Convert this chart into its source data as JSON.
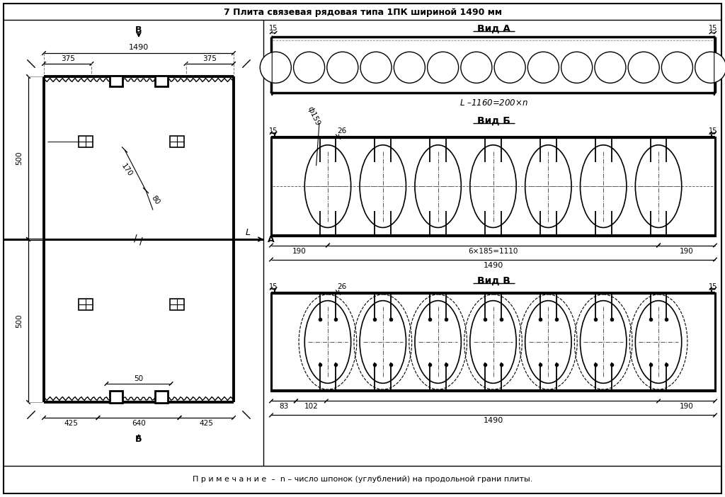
{
  "title": "7 Плита связевая рядовая типа 1ПК шириной 1490 мм",
  "note": "П р и м е ч а н и е  –  n – число шпонок (углублений) на продольной грани плиты.",
  "vid_a": "Вид А",
  "vid_b": "Вид Б",
  "vid_v": "Вид В",
  "label_B": "В",
  "label_A": "А",
  "label_b": "Б",
  "label_L": "L"
}
